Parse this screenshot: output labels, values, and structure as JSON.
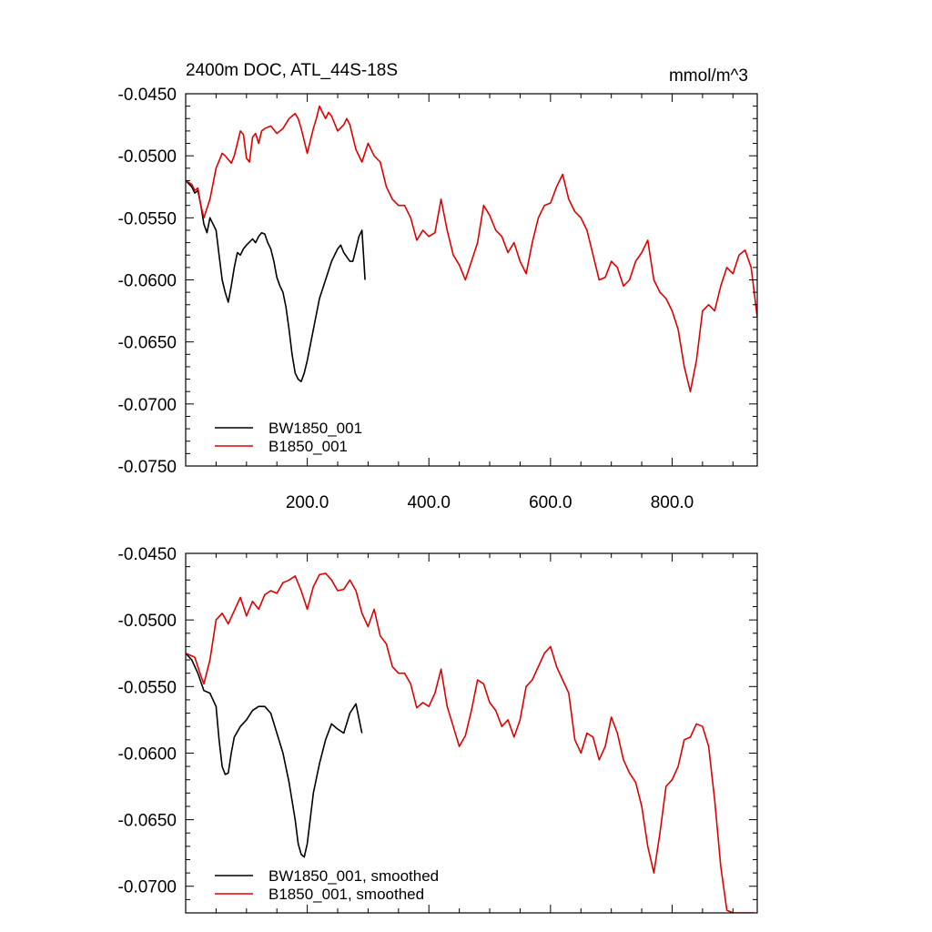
{
  "chart_data": [
    {
      "type": "line",
      "title": "2400m DOC, ATL_44S-18S",
      "units": "mmol/m^3",
      "xlim": [
        0,
        940
      ],
      "ylim": [
        -0.075,
        -0.045
      ],
      "y_tick_labels": [
        "-0.0450",
        "-0.0500",
        "-0.0550",
        "-0.0600",
        "-0.0650",
        "-0.0700",
        "-0.0750"
      ],
      "x_tick_labels": [
        "200.0",
        "400.0",
        "600.0",
        "800.0"
      ],
      "legend": "bottom-left",
      "series": [
        {
          "name": "BW1850_001",
          "color": "#000000",
          "x": [
            0,
            10,
            15,
            20,
            25,
            30,
            35,
            40,
            50,
            55,
            60,
            65,
            70,
            75,
            80,
            85,
            90,
            95,
            100,
            110,
            115,
            120,
            125,
            130,
            135,
            140,
            145,
            150,
            155,
            160,
            165,
            170,
            175,
            180,
            185,
            190,
            195,
            200,
            210,
            220,
            230,
            240,
            250,
            255,
            260,
            270,
            275,
            280,
            285,
            290,
            295
          ],
          "y": [
            -0.052,
            -0.0525,
            -0.053,
            -0.0528,
            -0.054,
            -0.0555,
            -0.0562,
            -0.055,
            -0.056,
            -0.058,
            -0.06,
            -0.061,
            -0.0618,
            -0.0605,
            -0.059,
            -0.0578,
            -0.058,
            -0.0575,
            -0.0572,
            -0.0567,
            -0.057,
            -0.0565,
            -0.0562,
            -0.0563,
            -0.057,
            -0.0575,
            -0.0585,
            -0.0598,
            -0.0605,
            -0.061,
            -0.0622,
            -0.064,
            -0.066,
            -0.0675,
            -0.068,
            -0.0682,
            -0.0675,
            -0.0665,
            -0.064,
            -0.0615,
            -0.06,
            -0.0585,
            -0.0575,
            -0.0572,
            -0.0578,
            -0.0585,
            -0.0585,
            -0.0575,
            -0.0565,
            -0.056,
            -0.06
          ]
        },
        {
          "name": "B1850_001",
          "color": "#e00000",
          "x": [
            0,
            10,
            15,
            20,
            25,
            30,
            40,
            50,
            60,
            65,
            70,
            75,
            80,
            85,
            90,
            95,
            100,
            105,
            110,
            115,
            120,
            125,
            130,
            140,
            150,
            160,
            170,
            175,
            180,
            185,
            190,
            200,
            210,
            215,
            220,
            225,
            230,
            235,
            240,
            250,
            260,
            265,
            270,
            280,
            290,
            300,
            310,
            320,
            330,
            340,
            350,
            360,
            370,
            380,
            390,
            400,
            410,
            420,
            430,
            440,
            450,
            460,
            470,
            480,
            490,
            500,
            510,
            520,
            530,
            540,
            550,
            560,
            570,
            580,
            590,
            600,
            610,
            620,
            630,
            640,
            650,
            660,
            670,
            680,
            690,
            700,
            710,
            720,
            730,
            740,
            750,
            760,
            770,
            780,
            790,
            800,
            810,
            820,
            830,
            840,
            850,
            860,
            870,
            880,
            890,
            900,
            910,
            920,
            930,
            940
          ],
          "y": [
            -0.052,
            -0.0523,
            -0.0528,
            -0.0526,
            -0.054,
            -0.055,
            -0.0535,
            -0.051,
            -0.0498,
            -0.05,
            -0.0503,
            -0.0506,
            -0.05,
            -0.049,
            -0.048,
            -0.0483,
            -0.0502,
            -0.0505,
            -0.0485,
            -0.0482,
            -0.049,
            -0.048,
            -0.0478,
            -0.0476,
            -0.0482,
            -0.0478,
            -0.047,
            -0.0468,
            -0.0466,
            -0.047,
            -0.0478,
            -0.0498,
            -0.0478,
            -0.047,
            -0.046,
            -0.0465,
            -0.047,
            -0.0465,
            -0.0468,
            -0.048,
            -0.0475,
            -0.047,
            -0.0475,
            -0.0495,
            -0.0505,
            -0.049,
            -0.05,
            -0.0505,
            -0.0525,
            -0.0535,
            -0.054,
            -0.054,
            -0.055,
            -0.0568,
            -0.056,
            -0.0565,
            -0.0562,
            -0.0535,
            -0.056,
            -0.058,
            -0.0588,
            -0.06,
            -0.0585,
            -0.057,
            -0.054,
            -0.0548,
            -0.056,
            -0.0565,
            -0.0578,
            -0.057,
            -0.0585,
            -0.0595,
            -0.057,
            -0.055,
            -0.054,
            -0.0538,
            -0.0525,
            -0.0515,
            -0.0535,
            -0.0545,
            -0.055,
            -0.056,
            -0.058,
            -0.06,
            -0.0598,
            -0.0585,
            -0.059,
            -0.0605,
            -0.06,
            -0.0585,
            -0.0578,
            -0.0568,
            -0.06,
            -0.061,
            -0.0615,
            -0.0625,
            -0.064,
            -0.067,
            -0.069,
            -0.0665,
            -0.0625,
            -0.062,
            -0.0625,
            -0.0605,
            -0.059,
            -0.0595,
            -0.058,
            -0.0576,
            -0.059,
            -0.063
          ]
        }
      ]
    },
    {
      "type": "line",
      "title": "",
      "xlim": [
        0,
        940
      ],
      "ylim": [
        -0.072,
        -0.045
      ],
      "y_tick_labels": [
        "-0.0450",
        "-0.0500",
        "-0.0550",
        "-0.0600",
        "-0.0650",
        "-0.0700"
      ],
      "legend": "bottom-left",
      "series": [
        {
          "name": "BW1850_001, smoothed",
          "color": "#000000",
          "x": [
            0,
            10,
            20,
            30,
            40,
            50,
            55,
            60,
            65,
            70,
            75,
            80,
            90,
            100,
            110,
            120,
            130,
            140,
            150,
            160,
            170,
            180,
            185,
            190,
            195,
            200,
            210,
            220,
            230,
            240,
            250,
            260,
            270,
            280,
            290
          ],
          "y": [
            -0.0525,
            -0.053,
            -0.054,
            -0.0553,
            -0.0555,
            -0.0565,
            -0.059,
            -0.061,
            -0.0616,
            -0.0615,
            -0.06,
            -0.0588,
            -0.058,
            -0.0575,
            -0.0568,
            -0.0565,
            -0.0565,
            -0.057,
            -0.0585,
            -0.06,
            -0.0622,
            -0.065,
            -0.0668,
            -0.0676,
            -0.0678,
            -0.0668,
            -0.063,
            -0.0608,
            -0.059,
            -0.0578,
            -0.0582,
            -0.0585,
            -0.057,
            -0.0563,
            -0.0585
          ]
        },
        {
          "name": "B1850_001, smoothed",
          "color": "#e00000",
          "x": [
            0,
            15,
            25,
            30,
            40,
            50,
            60,
            70,
            80,
            90,
            100,
            110,
            120,
            130,
            140,
            150,
            160,
            170,
            180,
            190,
            200,
            210,
            220,
            230,
            240,
            250,
            260,
            270,
            280,
            290,
            300,
            310,
            320,
            330,
            340,
            350,
            360,
            370,
            380,
            390,
            400,
            410,
            420,
            430,
            440,
            450,
            460,
            470,
            480,
            490,
            500,
            510,
            520,
            530,
            540,
            550,
            560,
            570,
            580,
            590,
            600,
            610,
            620,
            630,
            640,
            650,
            660,
            670,
            680,
            690,
            700,
            710,
            720,
            730,
            740,
            750,
            760,
            770,
            780,
            790,
            800,
            810,
            820,
            830,
            840,
            850,
            860,
            870,
            880,
            890,
            900,
            910,
            920,
            930,
            935
          ],
          "y": [
            -0.0525,
            -0.0528,
            -0.0542,
            -0.0548,
            -0.053,
            -0.05,
            -0.0495,
            -0.0503,
            -0.0493,
            -0.0483,
            -0.0497,
            -0.0486,
            -0.0492,
            -0.0481,
            -0.0478,
            -0.048,
            -0.0472,
            -0.047,
            -0.0467,
            -0.0478,
            -0.0492,
            -0.0475,
            -0.0466,
            -0.0465,
            -0.047,
            -0.0478,
            -0.0477,
            -0.047,
            -0.0478,
            -0.0495,
            -0.0505,
            -0.0492,
            -0.0512,
            -0.0518,
            -0.0535,
            -0.054,
            -0.054,
            -0.0548,
            -0.0566,
            -0.0562,
            -0.0565,
            -0.0555,
            -0.0537,
            -0.0565,
            -0.058,
            -0.0595,
            -0.0587,
            -0.0568,
            -0.0545,
            -0.0548,
            -0.0562,
            -0.0568,
            -0.058,
            -0.0575,
            -0.0588,
            -0.0575,
            -0.055,
            -0.0545,
            -0.0535,
            -0.0525,
            -0.052,
            -0.0535,
            -0.0545,
            -0.0555,
            -0.059,
            -0.06,
            -0.0585,
            -0.0588,
            -0.0605,
            -0.0595,
            -0.0573,
            -0.0585,
            -0.0605,
            -0.0615,
            -0.0622,
            -0.064,
            -0.067,
            -0.069,
            -0.066,
            -0.0625,
            -0.062,
            -0.061,
            -0.059,
            -0.0588,
            -0.0578,
            -0.058,
            -0.0595,
            -0.0635,
            -0.0685,
            -0.0718,
            -0.072,
            -0.072,
            -0.072,
            -0.072,
            -0.072
          ]
        }
      ]
    }
  ]
}
